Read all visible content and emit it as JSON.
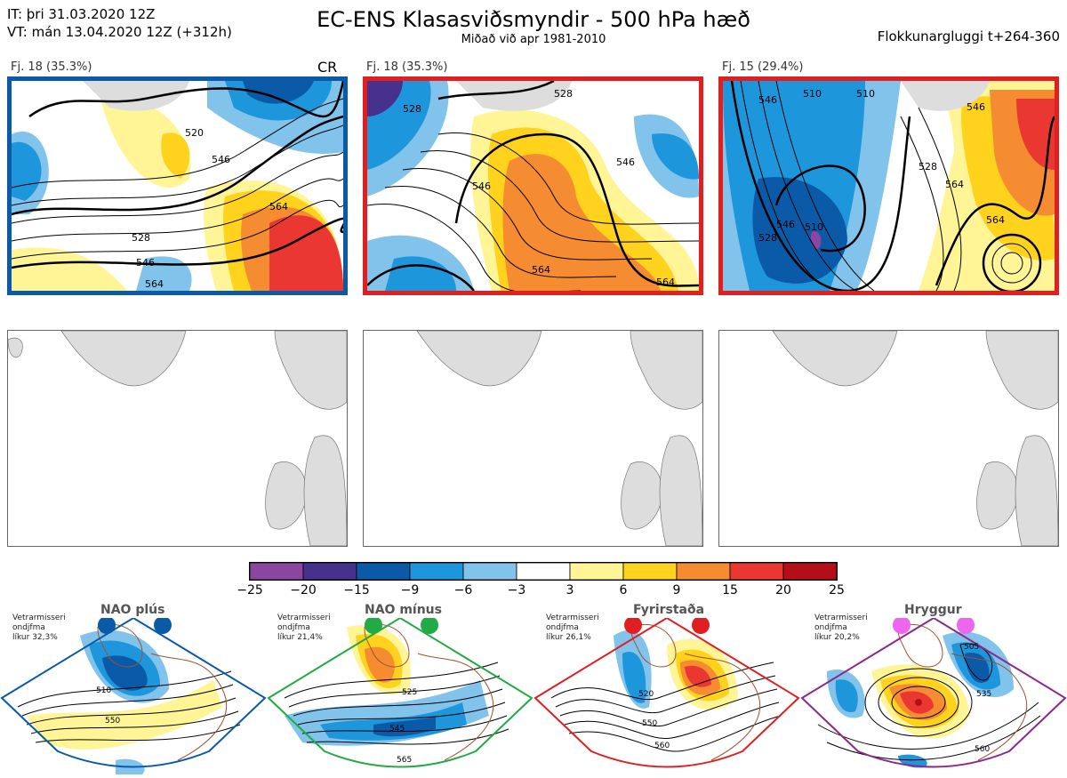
{
  "header": {
    "it_line": "IT: þri 31.03.2020 12Z",
    "vt_line": "VT: mán 13.04.2020 12Z  (+312h)",
    "title": "EC-ENS Klasasviðsmyndir - 500 hPa hæð",
    "subtitle": "Miðað við apr 1981-2010",
    "window": "Flokkunargluggi t+264-360"
  },
  "panels": [
    {
      "label": "Fj. 18 (35.3%)",
      "tag": "CR",
      "frame_color": "#0a5aa8",
      "contours": [
        "520",
        "546",
        "564",
        "528",
        "546",
        "564",
        "528"
      ]
    },
    {
      "label": "Fj. 18 (35.3%)",
      "tag": "",
      "frame_color": "#e02020",
      "contours": [
        "528",
        "528",
        "546",
        "564",
        "546",
        "564"
      ]
    },
    {
      "label": "Fj. 15 (29.4%)",
      "tag": "",
      "frame_color": "#e02020",
      "contours": [
        "546",
        "510",
        "510",
        "546",
        "528",
        "564",
        "564",
        "528",
        "546",
        "510"
      ]
    }
  ],
  "colorbar": {
    "ticks": [
      "−25",
      "−20",
      "−15",
      "−9",
      "−6",
      "−3",
      "3",
      "6",
      "9",
      "15",
      "20",
      "25"
    ],
    "colors": [
      "#8b46a0",
      "#46328c",
      "#0a5aa8",
      "#1e96dc",
      "#82c3eb",
      "#ffffff",
      "#fff596",
      "#ffd21e",
      "#f58c32",
      "#eb3732",
      "#b40f19"
    ]
  },
  "regimes": [
    {
      "name": "NAO plús",
      "info": [
        "Vetrarmisseri",
        "ondjfma",
        "líkur 32,3%"
      ],
      "color": "#0a5aa8",
      "contours": [
        "510",
        "550"
      ]
    },
    {
      "name": "NAO mínus",
      "info": [
        "Vetrarmisseri",
        "ondjfma",
        "líkur 21,4%"
      ],
      "color": "#22aa44",
      "contours": [
        "525",
        "545",
        "565"
      ]
    },
    {
      "name": "Fyrirstaða",
      "info": [
        "Vetrarmisseri",
        "ondjfma",
        "líkur 26,1%"
      ],
      "color": "#e02020",
      "contours": [
        "520",
        "550",
        "560"
      ]
    },
    {
      "name": "Hryggur",
      "info": [
        "Vetrarmisseri",
        "ondjfma",
        "líkur 20,2%"
      ],
      "color": "#ee66ee",
      "contours": [
        "505",
        "535",
        "560"
      ]
    }
  ]
}
